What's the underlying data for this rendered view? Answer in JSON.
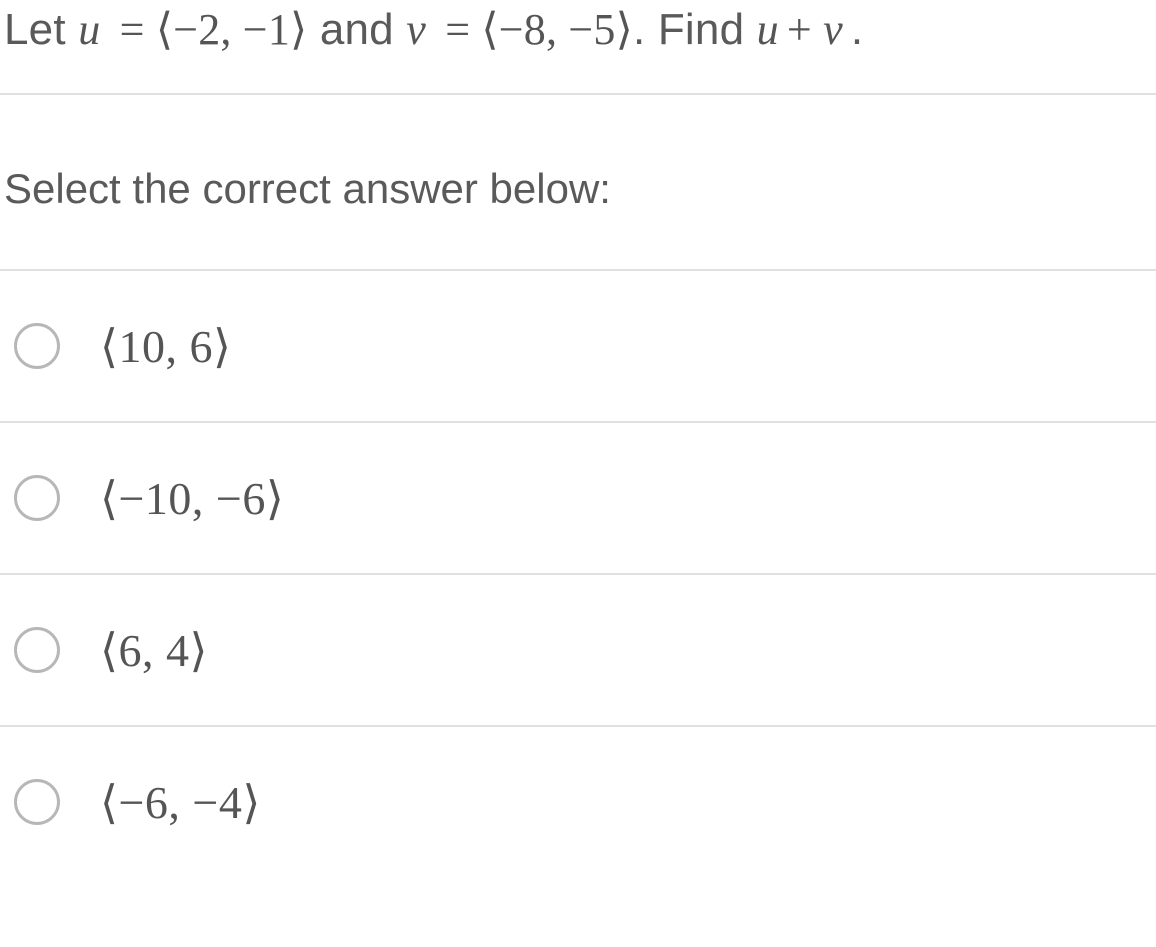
{
  "question": {
    "let_text": "Let ",
    "u_var": "u",
    "eq1": " = ",
    "u_val": "⟨−2, −1⟩",
    "and_text": " and ",
    "v_var": "v",
    "v_val": "⟨−8, −5⟩",
    "period1": ". ",
    "find_text": "Find ",
    "plus": "+ ",
    "period2": "."
  },
  "prompt": "Select the correct answer below:",
  "choices": [
    {
      "text": "⟨10, 6⟩"
    },
    {
      "text": "⟨−10, −6⟩"
    },
    {
      "text": "⟨6, 4⟩"
    },
    {
      "text": "⟨−6, −4⟩"
    }
  ],
  "style": {
    "text_color": "#555555",
    "border_color": "#e0e0e0",
    "radio_border": "#b7b7b7",
    "question_fontsize": 44,
    "prompt_fontsize": 42,
    "choice_fontsize": 46
  }
}
